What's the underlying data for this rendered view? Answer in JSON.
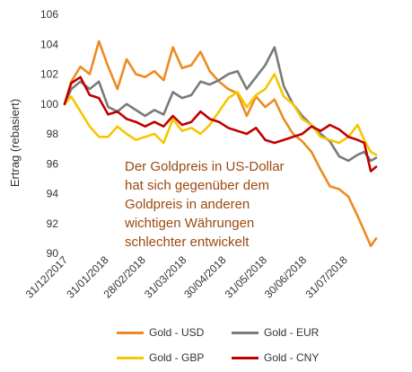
{
  "chart_data": {
    "type": "line",
    "ylabel": "Ertrag (rebasiert)",
    "ylim": [
      90,
      106
    ],
    "yticks": [
      90,
      92,
      94,
      96,
      98,
      100,
      102,
      104,
      106
    ],
    "xlim": [
      "2017-12-31",
      "2018-08-24"
    ],
    "xticks": [
      "31/12/2017",
      "31/01/2018",
      "28/02/2018",
      "31/03/2018",
      "30/04/2018",
      "31/05/2018",
      "30/06/2018",
      "31/07/2018"
    ],
    "annotation": [
      "Der Goldpreis in US-Dollar",
      "hat sich gegenüber dem",
      "Goldpreis in anderen",
      "wichtigen Währungen",
      "schlechter entwickelt"
    ],
    "series": [
      {
        "name": "Gold - USD",
        "color": "#ed8b22",
        "x": [
          "2017-12-31",
          "2018-01-05",
          "2018-01-12",
          "2018-01-19",
          "2018-01-26",
          "2018-02-02",
          "2018-02-09",
          "2018-02-16",
          "2018-02-23",
          "2018-03-02",
          "2018-03-09",
          "2018-03-16",
          "2018-03-23",
          "2018-03-30",
          "2018-04-06",
          "2018-04-13",
          "2018-04-20",
          "2018-04-27",
          "2018-05-04",
          "2018-05-11",
          "2018-05-18",
          "2018-05-25",
          "2018-06-01",
          "2018-06-08",
          "2018-06-15",
          "2018-06-22",
          "2018-06-29",
          "2018-07-06",
          "2018-07-13",
          "2018-07-20",
          "2018-07-27",
          "2018-08-03",
          "2018-08-10",
          "2018-08-15",
          "2018-08-20",
          "2018-08-24"
        ],
        "y": [
          100.0,
          101.5,
          102.5,
          102.0,
          104.2,
          102.5,
          101.0,
          103.0,
          102.0,
          101.8,
          102.2,
          101.6,
          103.8,
          102.4,
          102.6,
          103.5,
          102.2,
          101.5,
          101.0,
          100.7,
          99.2,
          100.5,
          99.8,
          100.3,
          99.0,
          98.0,
          97.5,
          96.8,
          95.6,
          94.5,
          94.3,
          93.8,
          92.5,
          91.5,
          90.5,
          91.0
        ]
      },
      {
        "name": "Gold - EUR",
        "color": "#7a7a7a",
        "x": [
          "2017-12-31",
          "2018-01-05",
          "2018-01-12",
          "2018-01-19",
          "2018-01-26",
          "2018-02-02",
          "2018-02-09",
          "2018-02-16",
          "2018-02-23",
          "2018-03-02",
          "2018-03-09",
          "2018-03-16",
          "2018-03-23",
          "2018-03-30",
          "2018-04-06",
          "2018-04-13",
          "2018-04-20",
          "2018-04-27",
          "2018-05-04",
          "2018-05-11",
          "2018-05-18",
          "2018-05-25",
          "2018-06-01",
          "2018-06-08",
          "2018-06-15",
          "2018-06-22",
          "2018-06-29",
          "2018-07-06",
          "2018-07-13",
          "2018-07-20",
          "2018-07-27",
          "2018-08-03",
          "2018-08-10",
          "2018-08-15",
          "2018-08-20",
          "2018-08-24"
        ],
        "y": [
          100.0,
          101.0,
          101.5,
          101.0,
          101.5,
          99.8,
          99.5,
          100.0,
          99.6,
          99.2,
          99.6,
          99.3,
          100.8,
          100.4,
          100.6,
          101.5,
          101.3,
          101.6,
          102.0,
          102.2,
          101.0,
          101.8,
          102.6,
          103.8,
          101.2,
          100.0,
          99.2,
          98.6,
          98.0,
          97.5,
          96.5,
          96.2,
          96.6,
          96.8,
          96.2,
          96.4
        ]
      },
      {
        "name": "Gold - GBP",
        "color": "#f7c600",
        "x": [
          "2017-12-31",
          "2018-01-05",
          "2018-01-12",
          "2018-01-19",
          "2018-01-26",
          "2018-02-02",
          "2018-02-09",
          "2018-02-16",
          "2018-02-23",
          "2018-03-02",
          "2018-03-09",
          "2018-03-16",
          "2018-03-23",
          "2018-03-30",
          "2018-04-06",
          "2018-04-13",
          "2018-04-20",
          "2018-04-27",
          "2018-05-04",
          "2018-05-11",
          "2018-05-18",
          "2018-05-25",
          "2018-06-01",
          "2018-06-08",
          "2018-06-15",
          "2018-06-22",
          "2018-06-29",
          "2018-07-06",
          "2018-07-13",
          "2018-07-20",
          "2018-07-27",
          "2018-08-03",
          "2018-08-10",
          "2018-08-15",
          "2018-08-20",
          "2018-08-24"
        ],
        "y": [
          100.0,
          100.5,
          99.5,
          98.5,
          97.8,
          97.8,
          98.5,
          98.0,
          97.6,
          97.8,
          98.0,
          97.4,
          99.0,
          98.2,
          98.4,
          98.0,
          98.6,
          99.5,
          100.4,
          100.8,
          99.8,
          100.6,
          101.0,
          102.0,
          100.5,
          100.0,
          99.0,
          98.6,
          97.8,
          97.6,
          97.4,
          97.8,
          98.6,
          97.6,
          96.8,
          96.6
        ]
      },
      {
        "name": "Gold - CNY",
        "color": "#c00000",
        "x": [
          "2017-12-31",
          "2018-01-05",
          "2018-01-12",
          "2018-01-19",
          "2018-01-26",
          "2018-02-02",
          "2018-02-09",
          "2018-02-16",
          "2018-02-23",
          "2018-03-02",
          "2018-03-09",
          "2018-03-16",
          "2018-03-23",
          "2018-03-30",
          "2018-04-06",
          "2018-04-13",
          "2018-04-20",
          "2018-04-27",
          "2018-05-04",
          "2018-05-11",
          "2018-05-18",
          "2018-05-25",
          "2018-06-01",
          "2018-06-08",
          "2018-06-15",
          "2018-06-22",
          "2018-06-29",
          "2018-07-06",
          "2018-07-13",
          "2018-07-20",
          "2018-07-27",
          "2018-08-03",
          "2018-08-10",
          "2018-08-15",
          "2018-08-20",
          "2018-08-24"
        ],
        "y": [
          100.0,
          101.4,
          101.8,
          100.6,
          100.4,
          99.3,
          99.5,
          99.0,
          98.8,
          98.5,
          98.8,
          98.5,
          99.2,
          98.6,
          98.8,
          99.5,
          99.0,
          98.8,
          98.4,
          98.2,
          98.0,
          98.4,
          97.6,
          97.4,
          97.6,
          97.8,
          98.0,
          98.5,
          98.2,
          98.6,
          98.3,
          97.8,
          97.6,
          97.4,
          95.5,
          95.8
        ]
      }
    ]
  }
}
